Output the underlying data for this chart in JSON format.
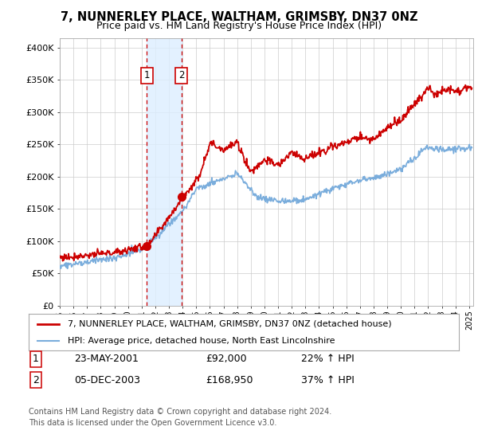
{
  "title": "7, NUNNERLEY PLACE, WALTHAM, GRIMSBY, DN37 0NZ",
  "subtitle": "Price paid vs. HM Land Registry's House Price Index (HPI)",
  "ylabel_ticks": [
    "£0",
    "£50K",
    "£100K",
    "£150K",
    "£200K",
    "£250K",
    "£300K",
    "£350K",
    "£400K"
  ],
  "ytick_values": [
    0,
    50000,
    100000,
    150000,
    200000,
    250000,
    300000,
    350000,
    400000
  ],
  "ylim": [
    0,
    415000
  ],
  "xlim_start": 1995.0,
  "xlim_end": 2025.3,
  "legend_line1": "7, NUNNERLEY PLACE, WALTHAM, GRIMSBY, DN37 0NZ (detached house)",
  "legend_line2": "HPI: Average price, detached house, North East Lincolnshire",
  "transaction1_date": "23-MAY-2001",
  "transaction1_price": "£92,000",
  "transaction1_hpi": "22% ↑ HPI",
  "transaction2_date": "05-DEC-2003",
  "transaction2_price": "£168,950",
  "transaction2_hpi": "37% ↑ HPI",
  "footer": "Contains HM Land Registry data © Crown copyright and database right 2024.\nThis data is licensed under the Open Government Licence v3.0.",
  "red_color": "#cc0000",
  "blue_color": "#7aaddc",
  "shade_color": "#ddeeff",
  "transaction1_x": 2001.39,
  "transaction2_x": 2003.92,
  "transaction1_y": 92000,
  "transaction2_y": 168950,
  "background_color": "#ffffff",
  "grid_color": "#cccccc"
}
